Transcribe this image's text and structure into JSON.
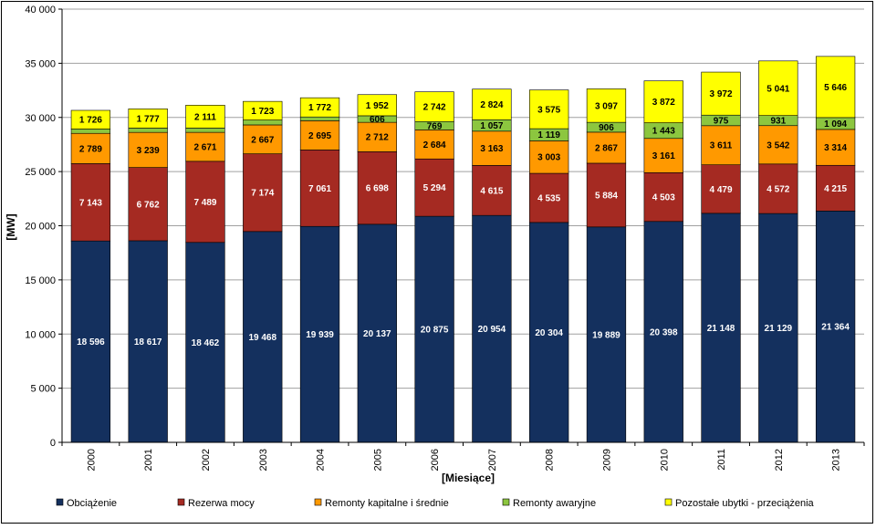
{
  "chart_data": {
    "type": "bar",
    "stacked": true,
    "title": "",
    "xlabel": "[Miesiące]",
    "ylabel": "[MW]",
    "ylim": [
      0,
      40000
    ],
    "yticks": [
      0,
      5000,
      10000,
      15000,
      20000,
      25000,
      30000,
      35000,
      40000
    ],
    "ytick_labels": [
      "0",
      "5 000",
      "10 000",
      "15 000",
      "20 000",
      "25 000",
      "30 000",
      "35 000",
      "40 000"
    ],
    "grid": true,
    "legend_position": "bottom",
    "categories": [
      "2000",
      "2001",
      "2002",
      "2003",
      "2004",
      "2005",
      "2006",
      "2007",
      "2008",
      "2009",
      "2010",
      "2011",
      "2012",
      "2013"
    ],
    "series": [
      {
        "name": "Obciążenie",
        "color": "#14305e",
        "label_color": "#ffffff",
        "values": [
          18596,
          18617,
          18462,
          19468,
          19939,
          20137,
          20875,
          20954,
          20304,
          19889,
          20398,
          21148,
          21129,
          21364
        ],
        "labels": [
          "18 596",
          "18 617",
          "18 462",
          "19 468",
          "19 939",
          "20 137",
          "20 875",
          "20 954",
          "20 304",
          "19 889",
          "20 398",
          "21 148",
          "21 129",
          "21 364"
        ]
      },
      {
        "name": "Rezerwa  mocy",
        "color": "#a52a22",
        "label_color": "#ffffff",
        "values": [
          7143,
          6762,
          7489,
          7174,
          7061,
          6698,
          5294,
          4615,
          4535,
          5884,
          4503,
          4479,
          4572,
          4215
        ],
        "labels": [
          "7 143",
          "6 762",
          "7 489",
          "7 174",
          "7 061",
          "6 698",
          "5 294",
          "4 615",
          "4 535",
          "5 884",
          "4 503",
          "4 479",
          "4 572",
          "4 215"
        ]
      },
      {
        "name": "Remonty kapitalne i średnie",
        "color": "#ff9900",
        "label_color": "#000000",
        "values": [
          2789,
          3239,
          2671,
          2667,
          2695,
          2712,
          2684,
          3163,
          3003,
          2867,
          3161,
          3611,
          3542,
          3314
        ],
        "labels": [
          "2 789",
          "3 239",
          "2 671",
          "2 667",
          "2 695",
          "2 712",
          "2 684",
          "3 163",
          "3 003",
          "2 867",
          "3 161",
          "3 611",
          "3 542",
          "3 314"
        ]
      },
      {
        "name": "Remonty awaryjne",
        "color": "#8cc63f",
        "label_color": "#000000",
        "values": [
          400,
          400,
          400,
          450,
          350,
          606,
          769,
          1057,
          1119,
          906,
          1443,
          975,
          931,
          1094
        ],
        "labels": [
          "",
          "",
          "",
          "",
          "",
          "606",
          "769",
          "1 057",
          "1 119",
          "906",
          "1 443",
          "975",
          "931",
          "1 094"
        ]
      },
      {
        "name": "Pozostałe ubytki - przeciążenia",
        "color": "#ffff00",
        "label_color": "#000000",
        "values": [
          1726,
          1777,
          2111,
          1723,
          1772,
          1952,
          2742,
          2824,
          3575,
          3097,
          3872,
          3972,
          5041,
          5646
        ],
        "labels": [
          "1 726",
          "1 777",
          "2 111",
          "1 723",
          "1 772",
          "1 952",
          "2 742",
          "2 824",
          "3 575",
          "3 097",
          "3 872",
          "3 972",
          "5 041",
          "5 646"
        ]
      }
    ]
  }
}
